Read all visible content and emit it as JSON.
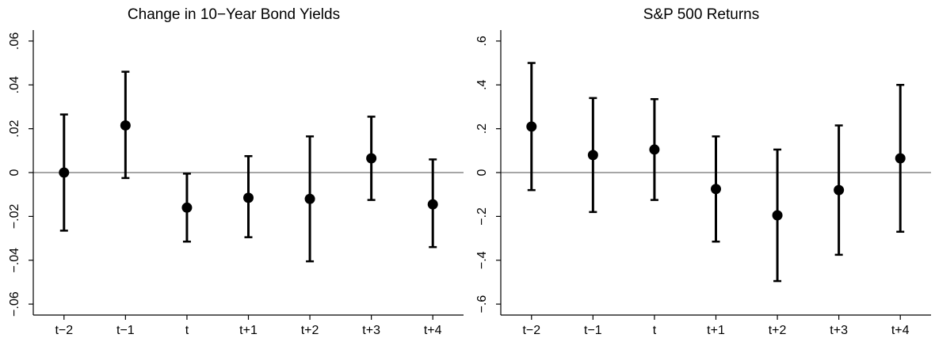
{
  "chart_data": [
    {
      "type": "scatter",
      "title": "Change in 10−Year Bond Yields",
      "categories": [
        "t−2",
        "t−1",
        "t",
        "t+1",
        "t+2",
        "t+3",
        "t+4"
      ],
      "values": [
        0.0,
        0.0215,
        -0.016,
        -0.0115,
        -0.012,
        0.0065,
        -0.0145
      ],
      "ci_low": [
        -0.0265,
        -0.0025,
        -0.0315,
        -0.0295,
        -0.0405,
        -0.0125,
        -0.034
      ],
      "ci_high": [
        0.0265,
        0.046,
        -0.0005,
        0.0075,
        0.0165,
        0.0255,
        0.006
      ],
      "yticks": [
        -0.06,
        -0.04,
        -0.02,
        0,
        0.02,
        0.04,
        0.06
      ],
      "ytick_labels": [
        "−.06",
        "−.04",
        "−.02",
        "0",
        ".02",
        ".04",
        ".06"
      ],
      "ylim": [
        -0.065,
        0.065
      ],
      "zero_line": true,
      "grid": false,
      "colors": {
        "marker": "#000000",
        "zero_line": "#a6a6a6",
        "axis": "#000000"
      }
    },
    {
      "type": "scatter",
      "title": "S&P 500 Returns",
      "categories": [
        "t−2",
        "t−1",
        "t",
        "t+1",
        "t+2",
        "t+3",
        "t+4"
      ],
      "values": [
        0.21,
        0.08,
        0.105,
        -0.075,
        -0.195,
        -0.08,
        0.065
      ],
      "ci_low": [
        -0.08,
        -0.18,
        -0.125,
        -0.315,
        -0.495,
        -0.375,
        -0.27
      ],
      "ci_high": [
        0.5,
        0.34,
        0.335,
        0.165,
        0.105,
        0.215,
        0.4
      ],
      "yticks": [
        -0.6,
        -0.4,
        -0.2,
        0,
        0.2,
        0.4,
        0.6
      ],
      "ytick_labels": [
        "−.6",
        "−.4",
        "−.2",
        "0",
        ".2",
        ".4",
        ".6"
      ],
      "ylim": [
        -0.65,
        0.65
      ],
      "zero_line": true,
      "grid": false,
      "colors": {
        "marker": "#000000",
        "zero_line": "#a6a6a6",
        "axis": "#000000"
      }
    }
  ]
}
